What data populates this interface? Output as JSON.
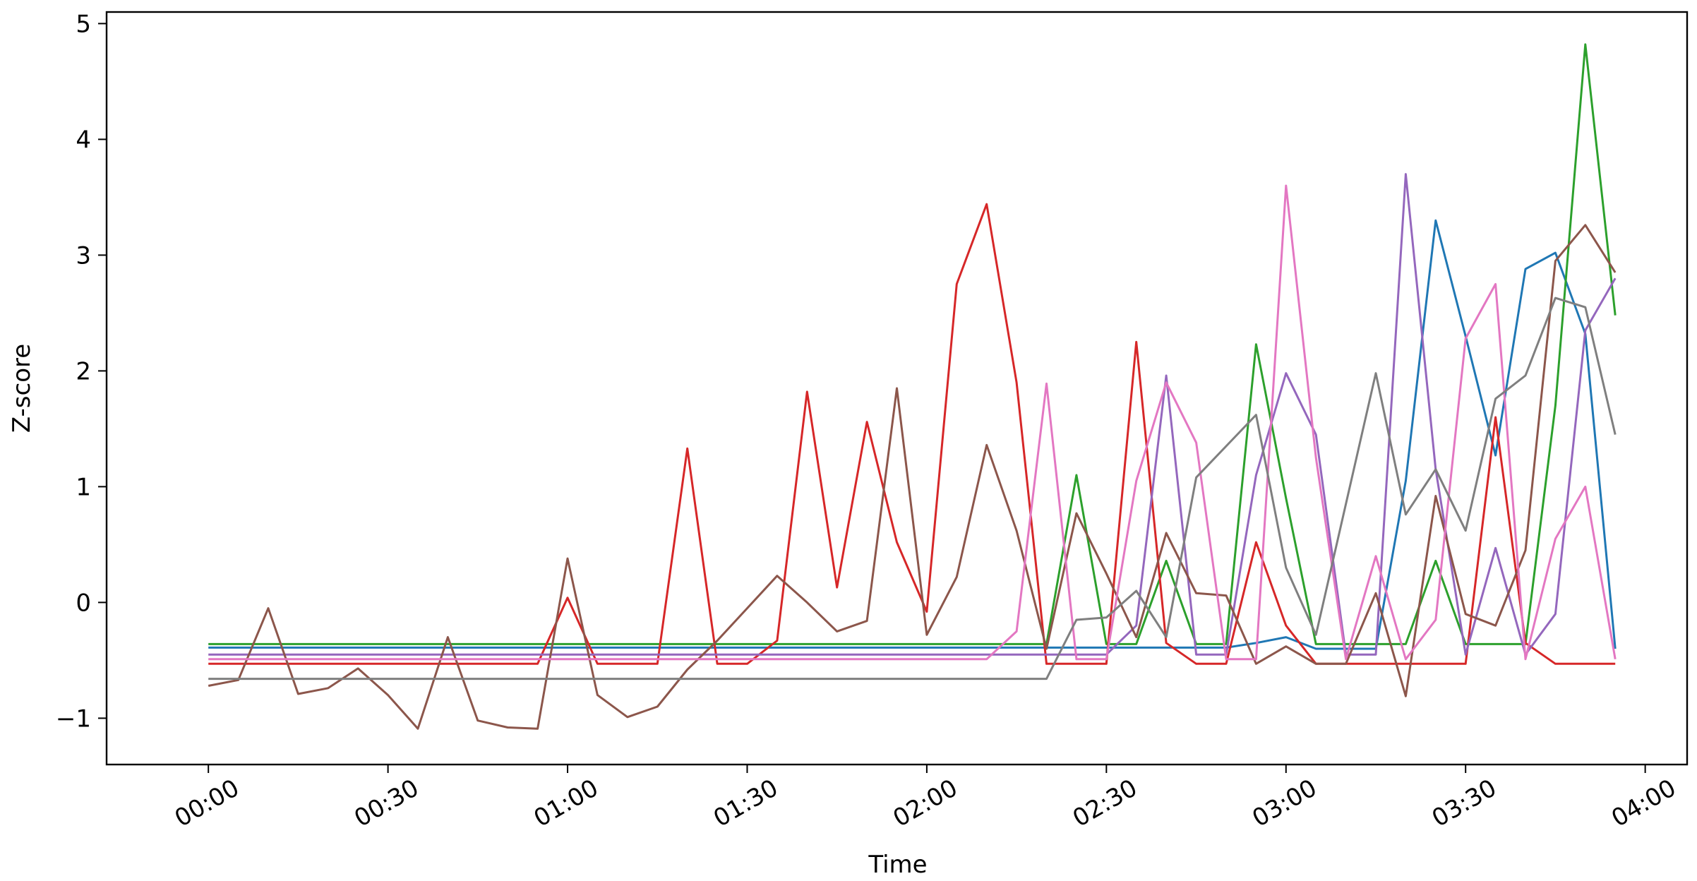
{
  "chart_data": {
    "type": "line",
    "xlabel": "Time",
    "ylabel": "Z-score",
    "x_ticks": [
      "00:00",
      "00:30",
      "01:00",
      "01:30",
      "02:00",
      "02:30",
      "03:00",
      "03:30",
      "04:00"
    ],
    "y_ticks": [
      -1,
      0,
      1,
      2,
      3,
      4,
      5
    ],
    "xlim": [
      "-00:17",
      "04:07"
    ],
    "ylim": [
      -1.4,
      5.1
    ],
    "grid": false,
    "x": [
      "00:00",
      "00:05",
      "00:10",
      "00:15",
      "00:20",
      "00:25",
      "00:30",
      "00:35",
      "00:40",
      "00:45",
      "00:50",
      "00:55",
      "01:00",
      "01:05",
      "01:10",
      "01:15",
      "01:20",
      "01:25",
      "01:30",
      "01:35",
      "01:40",
      "01:45",
      "01:50",
      "01:55",
      "02:00",
      "02:05",
      "02:10",
      "02:15",
      "02:20",
      "02:25",
      "02:30",
      "02:35",
      "02:40",
      "02:45",
      "02:50",
      "02:55",
      "03:00",
      "03:05",
      "03:10",
      "03:15",
      "03:20",
      "03:25",
      "03:30",
      "03:35",
      "03:40",
      "03:45",
      "03:50",
      "03:55"
    ],
    "series": [
      {
        "color": "#1f77b4",
        "values": [
          -0.39,
          -0.39,
          -0.39,
          -0.39,
          -0.39,
          -0.39,
          -0.39,
          -0.39,
          -0.39,
          -0.39,
          -0.39,
          -0.39,
          -0.39,
          -0.39,
          -0.39,
          -0.39,
          -0.39,
          -0.39,
          -0.39,
          -0.39,
          -0.39,
          -0.39,
          -0.39,
          -0.39,
          -0.39,
          -0.39,
          -0.39,
          -0.39,
          -0.39,
          -0.39,
          -0.39,
          -0.39,
          -0.39,
          -0.39,
          -0.39,
          -0.35,
          -0.3,
          -0.4,
          -0.4,
          -0.4,
          1.05,
          3.3,
          2.3,
          1.27,
          2.88,
          3.02,
          2.32,
          -0.4
        ]
      },
      {
        "color": "#2ca02c",
        "values": [
          -0.36,
          -0.36,
          -0.36,
          -0.36,
          -0.36,
          -0.36,
          -0.36,
          -0.36,
          -0.36,
          -0.36,
          -0.36,
          -0.36,
          -0.36,
          -0.36,
          -0.36,
          -0.36,
          -0.36,
          -0.36,
          -0.36,
          -0.36,
          -0.36,
          -0.36,
          -0.36,
          -0.36,
          -0.36,
          -0.36,
          -0.36,
          -0.36,
          -0.36,
          1.1,
          -0.36,
          -0.36,
          0.36,
          -0.36,
          -0.36,
          2.23,
          0.9,
          -0.36,
          -0.36,
          -0.36,
          -0.36,
          0.36,
          -0.36,
          -0.36,
          -0.36,
          1.7,
          4.82,
          2.48
        ]
      },
      {
        "color": "#d62728",
        "values": [
          -0.53,
          -0.53,
          -0.53,
          -0.53,
          -0.53,
          -0.53,
          -0.53,
          -0.53,
          -0.53,
          -0.53,
          -0.53,
          -0.53,
          0.04,
          -0.53,
          -0.53,
          -0.53,
          1.33,
          -0.53,
          -0.53,
          -0.33,
          1.82,
          0.13,
          1.56,
          0.52,
          -0.08,
          2.75,
          3.44,
          1.9,
          -0.53,
          -0.53,
          -0.53,
          2.25,
          -0.35,
          -0.53,
          -0.53,
          0.52,
          -0.2,
          -0.53,
          -0.53,
          -0.53,
          -0.53,
          -0.53,
          -0.53,
          1.6,
          -0.35,
          -0.53,
          -0.53,
          -0.53
        ]
      },
      {
        "color": "#9467bd",
        "values": [
          -0.45,
          -0.45,
          -0.45,
          -0.45,
          -0.45,
          -0.45,
          -0.45,
          -0.45,
          -0.45,
          -0.45,
          -0.45,
          -0.45,
          -0.45,
          -0.45,
          -0.45,
          -0.45,
          -0.45,
          -0.45,
          -0.45,
          -0.45,
          -0.45,
          -0.45,
          -0.45,
          -0.45,
          -0.45,
          -0.45,
          -0.45,
          -0.45,
          -0.45,
          -0.45,
          -0.45,
          -0.2,
          1.96,
          -0.45,
          -0.45,
          1.1,
          1.98,
          1.45,
          -0.45,
          -0.45,
          3.7,
          1.15,
          -0.45,
          0.47,
          -0.45,
          -0.1,
          2.35,
          2.8
        ]
      },
      {
        "color": "#8c564b",
        "values": [
          -0.72,
          -0.67,
          -0.05,
          -0.79,
          -0.74,
          -0.57,
          -0.8,
          -1.09,
          -0.3,
          -1.02,
          -1.08,
          -1.09,
          0.38,
          -0.8,
          -0.99,
          -0.9,
          -0.58,
          -0.33,
          -0.05,
          0.23,
          0.0,
          -0.25,
          -0.16,
          1.85,
          -0.28,
          0.22,
          1.36,
          0.62,
          -0.4,
          0.77,
          0.25,
          -0.3,
          0.6,
          0.08,
          0.06,
          -0.53,
          -0.38,
          -0.53,
          -0.53,
          0.08,
          -0.81,
          0.92,
          -0.1,
          -0.2,
          0.45,
          2.95,
          3.26,
          2.85
        ]
      },
      {
        "color": "#e377c2",
        "values": [
          -0.49,
          -0.49,
          -0.49,
          -0.49,
          -0.49,
          -0.49,
          -0.49,
          -0.49,
          -0.49,
          -0.49,
          -0.49,
          -0.49,
          -0.49,
          -0.49,
          -0.49,
          -0.49,
          -0.49,
          -0.49,
          -0.49,
          -0.49,
          -0.49,
          -0.49,
          -0.49,
          -0.49,
          -0.49,
          -0.49,
          -0.49,
          -0.25,
          1.89,
          -0.49,
          -0.49,
          1.05,
          1.9,
          1.38,
          -0.49,
          -0.49,
          3.6,
          1.25,
          -0.49,
          0.4,
          -0.49,
          -0.15,
          2.28,
          2.75,
          -0.49,
          0.55,
          1.0,
          -0.49
        ]
      },
      {
        "color": "#7f7f7f",
        "values": [
          -0.66,
          -0.66,
          -0.66,
          -0.66,
          -0.66,
          -0.66,
          -0.66,
          -0.66,
          -0.66,
          -0.66,
          -0.66,
          -0.66,
          -0.66,
          -0.66,
          -0.66,
          -0.66,
          -0.66,
          -0.66,
          -0.66,
          -0.66,
          -0.66,
          -0.66,
          -0.66,
          -0.66,
          -0.66,
          -0.66,
          -0.66,
          -0.66,
          -0.66,
          -0.15,
          -0.13,
          0.1,
          -0.3,
          1.08,
          1.35,
          1.62,
          0.3,
          -0.28,
          0.85,
          1.98,
          0.76,
          1.15,
          0.62,
          1.76,
          1.96,
          2.63,
          2.55,
          1.45
        ]
      }
    ]
  }
}
